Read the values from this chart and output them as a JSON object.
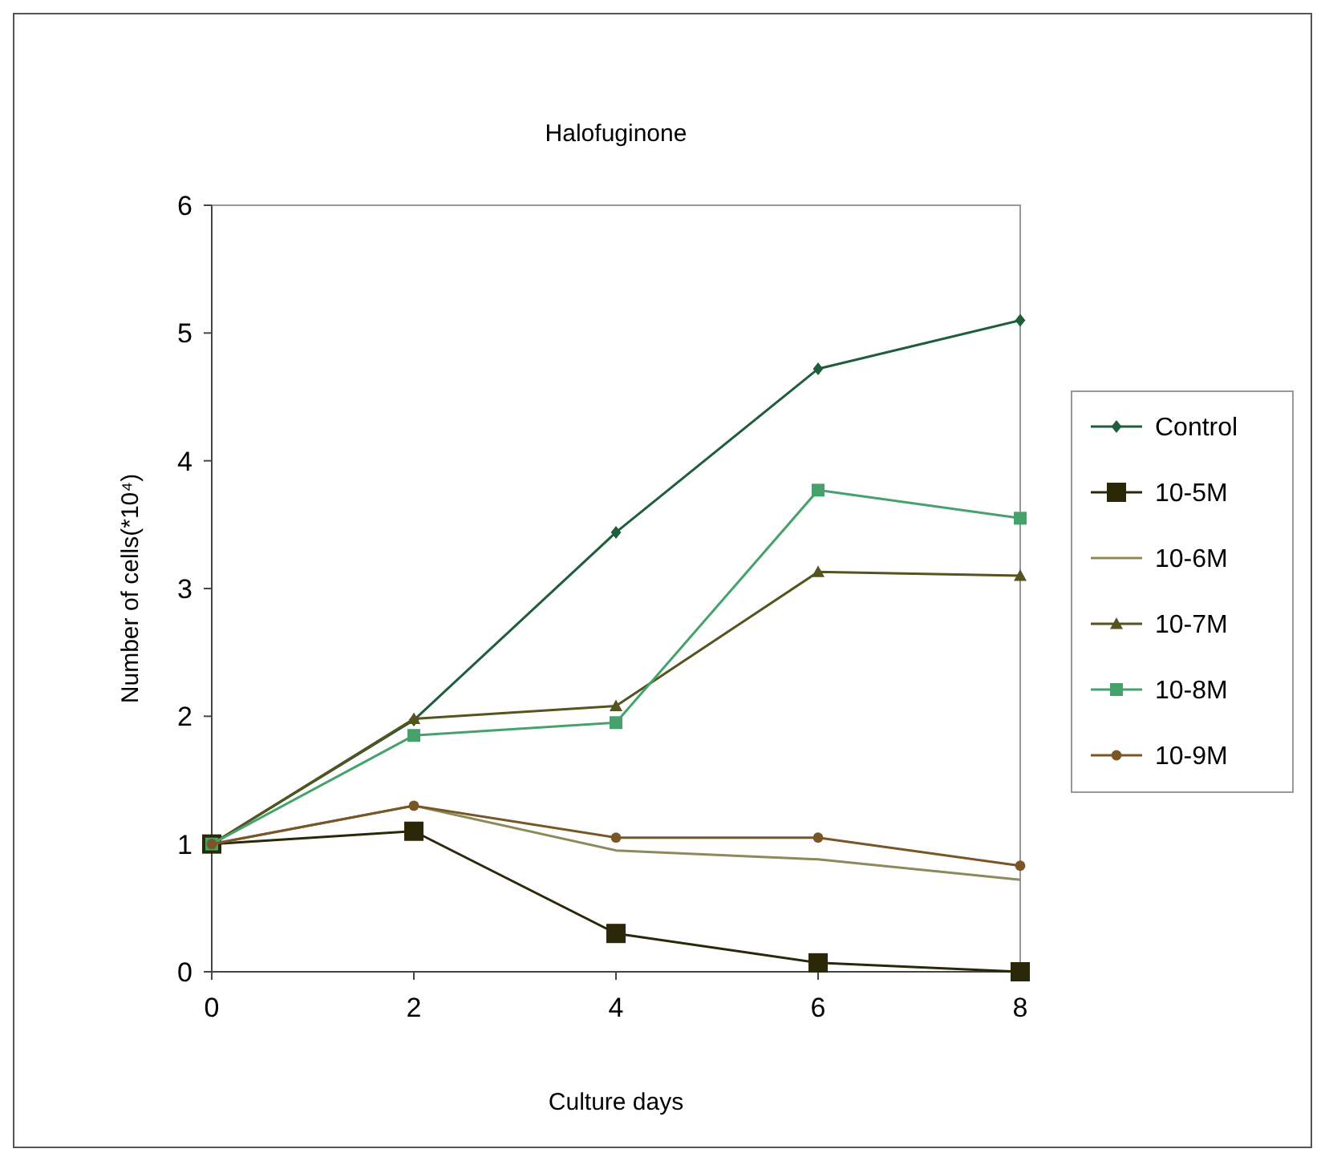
{
  "chart_data": {
    "type": "line",
    "title": "Halofuginone",
    "xlabel": "Culture days",
    "ylabel": "Number of cells(*10⁴)",
    "x": [
      0,
      2,
      4,
      6,
      8
    ],
    "xlim": [
      0,
      8
    ],
    "xticks": [
      0,
      2,
      4,
      6,
      8
    ],
    "ylim": [
      0,
      6
    ],
    "yticks": [
      0,
      1,
      2,
      3,
      4,
      5,
      6
    ],
    "grid": false,
    "legend": "right",
    "series": [
      {
        "name": "Control",
        "color": "#1e5e3a",
        "marker": "diamond",
        "values": [
          1,
          1.97,
          3.44,
          4.72,
          5.1
        ]
      },
      {
        "name": "10-5M",
        "color": "#2a2808",
        "marker": "square",
        "values": [
          1,
          1.1,
          0.3,
          0.07,
          0
        ]
      },
      {
        "name": "10-6M",
        "color": "#8c8a5a",
        "marker": "none",
        "values": [
          1,
          1.3,
          0.95,
          0.88,
          0.72
        ]
      },
      {
        "name": "10-7M",
        "color": "#55531e",
        "marker": "triangle",
        "values": [
          1,
          1.98,
          2.08,
          3.13,
          3.1
        ]
      },
      {
        "name": "10-8M",
        "color": "#46a26c",
        "marker": "square",
        "values": [
          1,
          1.85,
          1.95,
          3.77,
          3.55
        ]
      },
      {
        "name": "10-9M",
        "color": "#7a5626",
        "marker": "circle",
        "values": [
          1,
          1.3,
          1.05,
          1.05,
          0.83
        ]
      }
    ]
  }
}
